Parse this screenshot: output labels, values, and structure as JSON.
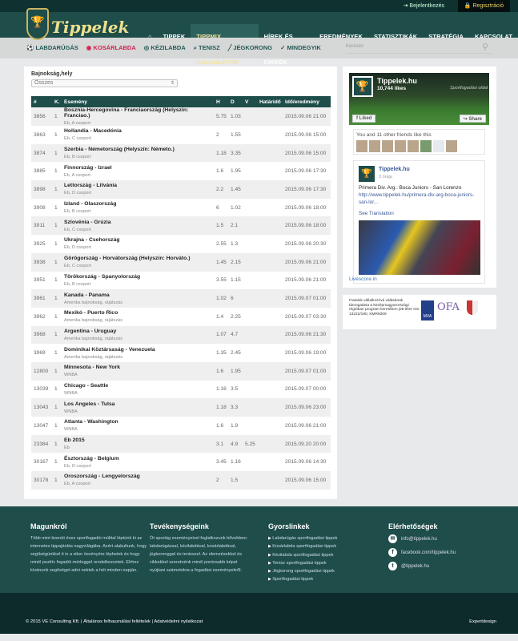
{
  "topbar": {
    "login": "Bejelentkezés",
    "register": "Regisztráció"
  },
  "brand": {
    "name": "Tippelek"
  },
  "nav": {
    "items": [
      "TIPPEK",
      "TIPPMIX KALKULÁTOR",
      "HÍREK ÉS CIKKEK",
      "EREDMÉNYEK",
      "STATISZTIKÁK",
      "STRATÉGIA",
      "KAPCSOLAT"
    ],
    "active": "TIPPMIX KALKULÁTOR"
  },
  "subnav": {
    "items": [
      "LABDARÚGÁS",
      "KOSÁRLABDA",
      "KÉZILABDA",
      "TENISZ",
      "JÉGKORONG",
      "MINDEGYIK"
    ],
    "search_placeholder": "Keresés"
  },
  "filter": {
    "label": "Bajnokság,hely",
    "value": "Összes"
  },
  "table": {
    "headers": [
      "#",
      "K.",
      "Esemény",
      "H",
      "D",
      "V",
      "Határidő",
      "Idő/eredmény"
    ],
    "rows": [
      {
        "id": "3856",
        "k": "1",
        "event": "Bosznia-Hercegovina - Franciaország (Helyszín: Franciao.)",
        "league": "Eb, A csoport",
        "h": "5.75",
        "d": "1.03",
        "v": "",
        "deadline": "",
        "time": "2015.09.06 21:00"
      },
      {
        "id": "3863",
        "k": "1",
        "event": "Hollandia - Macedónia",
        "league": "Eb, C csoport",
        "h": "2",
        "d": "1.55",
        "v": "",
        "deadline": "",
        "time": "2015.09.06 15:00"
      },
      {
        "id": "3874",
        "k": "1",
        "event": "Szerbia - Németország (Helyszín: Németo.)",
        "league": "Eb, B csoport",
        "h": "1.18",
        "d": "3.35",
        "v": "",
        "deadline": "",
        "time": "2015.09.06 15:00"
      },
      {
        "id": "3885",
        "k": "1",
        "event": "Finnország - Izrael",
        "league": "Eb, A csoport",
        "h": "1.6",
        "d": "1.95",
        "v": "",
        "deadline": "",
        "time": "2015.09.06 17:30"
      },
      {
        "id": "3898",
        "k": "1",
        "event": "Lettország - Litvánia",
        "league": "Eb, D csoport",
        "h": "2.2",
        "d": "1.45",
        "v": "",
        "deadline": "",
        "time": "2015.09.06 17:30"
      },
      {
        "id": "3908",
        "k": "1",
        "event": "Izland - Olaszország",
        "league": "Eb, B csoport",
        "h": "6",
        "d": "1.02",
        "v": "",
        "deadline": "",
        "time": "2015.09.06 18:00"
      },
      {
        "id": "3911",
        "k": "1",
        "event": "Szlovénia - Grúzia",
        "league": "Eb, C csoport",
        "h": "1.5",
        "d": "2.1",
        "v": "",
        "deadline": "",
        "time": "2015.09.06 18:00"
      },
      {
        "id": "3925",
        "k": "1",
        "event": "Ukrajna - Csehország",
        "league": "Eb, D csoport",
        "h": "2.55",
        "d": "1.3",
        "v": "",
        "deadline": "",
        "time": "2015.09.06 20:30"
      },
      {
        "id": "3938",
        "k": "1",
        "event": "Görögország - Horvátország (Helyszín: Horváto.)",
        "league": "Eb, C csoport",
        "h": "1.45",
        "d": "2.15",
        "v": "",
        "deadline": "",
        "time": "2015.09.06 21:00"
      },
      {
        "id": "3951",
        "k": "1",
        "event": "Törökország - Spanyolország",
        "league": "Eb, B csoport",
        "h": "3.55",
        "d": "1.15",
        "v": "",
        "deadline": "",
        "time": "2015.09.06 21:00"
      },
      {
        "id": "3961",
        "k": "1",
        "event": "Kanada - Panama",
        "league": "Amerika bajnokság, rájátszás",
        "h": "1.02",
        "d": "6",
        "v": "",
        "deadline": "",
        "time": "2015.09.07 01:00"
      },
      {
        "id": "3962",
        "k": "1",
        "event": "Mexikó - Puerto Rico",
        "league": "Amerika bajnokság, rájátszás",
        "h": "1.4",
        "d": "2.25",
        "v": "",
        "deadline": "",
        "time": "2015.09.07 03:30"
      },
      {
        "id": "3968",
        "k": "1",
        "event": "Argentina - Uruguay",
        "league": "Amerika bajnokság, rájátszás",
        "h": "1.07",
        "d": "4.7",
        "v": "",
        "deadline": "",
        "time": "2015.09.06 21:30"
      },
      {
        "id": "3969",
        "k": "1",
        "event": "Dominikai Köztársaság - Venezuela",
        "league": "Amerika bajnokság, rájátszás",
        "h": "1.35",
        "d": "2.45",
        "v": "",
        "deadline": "",
        "time": "2015.09.06 19:00"
      },
      {
        "id": "12800",
        "k": "1",
        "event": "Minnesota - New York",
        "league": "WNBA",
        "h": "1.6",
        "d": "1.95",
        "v": "",
        "deadline": "",
        "time": "2015.09.07 01:00"
      },
      {
        "id": "13039",
        "k": "1",
        "event": "Chicago - Seattle",
        "league": "WNBA",
        "h": "1.16",
        "d": "3.5",
        "v": "",
        "deadline": "",
        "time": "2015.09.07 00:00"
      },
      {
        "id": "13043",
        "k": "1",
        "event": "Los Angeles - Tulsa",
        "league": "WNBA",
        "h": "1.18",
        "d": "3.3",
        "v": "",
        "deadline": "",
        "time": "2015.09.06 23:00"
      },
      {
        "id": "13047",
        "k": "1",
        "event": "Atlanta - Washington",
        "league": "WNBA",
        "h": "1.6",
        "d": "1.9",
        "v": "",
        "deadline": "",
        "time": "2015.09.06 21:00"
      },
      {
        "id": "23384",
        "k": "1",
        "event": "Eb 2015",
        "league": "Eb",
        "h": "3.1",
        "d": "4.9",
        "v": "5.25",
        "deadline": "",
        "time": "2015.09.20 20:00"
      },
      {
        "id": "30167",
        "k": "1",
        "event": "Észtország - Belgium",
        "league": "Eb, D csoport",
        "h": "3.45",
        "d": "1.16",
        "v": "",
        "deadline": "",
        "time": "2015.09.06 14:30"
      },
      {
        "id": "30178",
        "k": "1",
        "event": "Oroszország - Lengyelország",
        "league": "Eb, A csoport",
        "h": "2",
        "d": "1.5",
        "v": "",
        "deadline": "",
        "time": "2015.09.06 15:00"
      }
    ]
  },
  "facebook": {
    "page_name": "Tippelek.hu",
    "likes": "10,744 likes",
    "tagline": "Sportfogadási oldal",
    "liked": "Liked",
    "share": "Share",
    "friends": "You and 11 other friends like this",
    "post": {
      "author": "Tippelek.hu",
      "time": "3 órája",
      "title": "Primera Div. Arg.: Boca Juniors - San Lorenzo",
      "link": "http://www.tippelek.hu/primera-div-arg-boca-juniors-san-lor...",
      "translate": "See Translation"
    }
  },
  "livescore": "Livescore.in",
  "sponsor": {
    "text": "Fiatalok vállalkozóvá válásának támogatása a középmagyarországi régióban program keretében jött létre GS 13222/180, KMR8309",
    "logos": [
      "MVA",
      "OFA"
    ]
  },
  "footer": {
    "about": {
      "title": "Magunkról",
      "text": "Több mint tizenöt éves sportfogadói múlttal léptünk ki az internetes tippajánlás nagyvilágába. Azért alakultunk, hogy segítségünkkel ti is a siker ösvényére léphetek és hogy minél pozitív fogadói mérleggel rendelkezzetek. Ehhez kívánunk segítséget adni nektek a hét minden napján."
    },
    "activities": {
      "title": "Tevékenységeink",
      "text": "Öt sportág eseményeivel foglalkozunk bővebben: labdarúgással, kézilabdával, kosárlabdával, jégkoronggal és tenisszel. Az elemzésekkel és cikkekkel szeretnénk minél pontosabb képet nyújtani számotokra a fogadási eseményekről."
    },
    "quicklinks": {
      "title": "Gyorslinkek",
      "items": [
        "Labdarúgás sportfogadási tippek",
        "Kosárlabda sportfogadási tippek",
        "Kézilabda sportfogadási tippek",
        "Tenisz sportfogadási tippek",
        "Jégkorong sportfogadási tippek",
        "Sportfogadási tippek"
      ]
    },
    "contact": {
      "title": "Elérhetőségek",
      "email": "info@tippelek.hu",
      "facebook": "facebook.com/tippelek.hu",
      "twitter": "@tippelek.hu"
    },
    "copyright": "© 2015 VE Consulting Kft.  |  Általános felhasználási feltételek   |  Adatvédelmi nyilatkozat",
    "credit": "Expertdesign"
  },
  "colors": {
    "primary": "#1e4d4a",
    "accent": "#f0d264",
    "basketball": "#d2224f"
  }
}
